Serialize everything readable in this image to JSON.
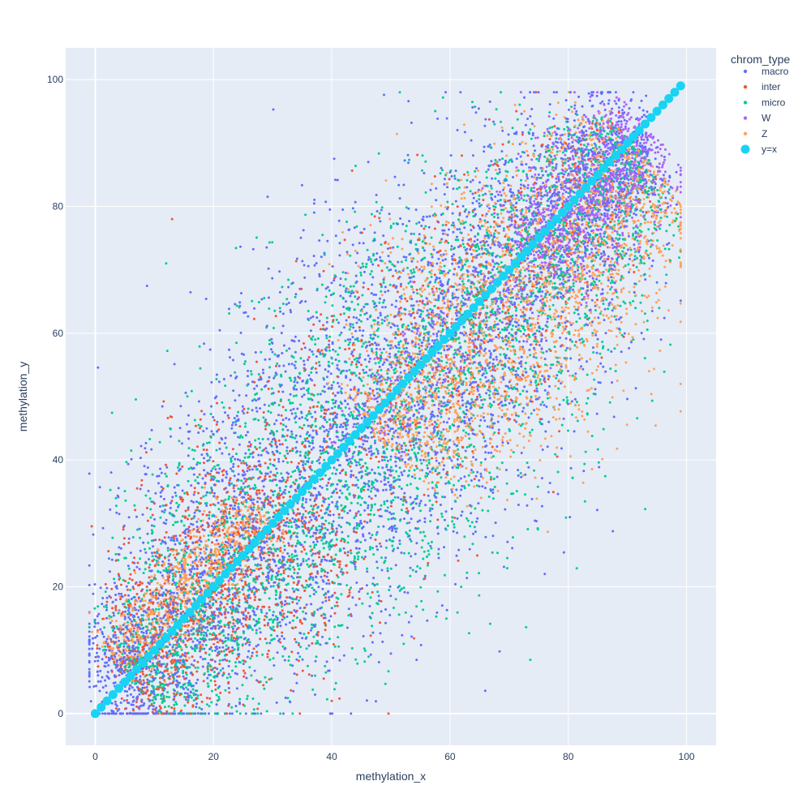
{
  "chart_data": {
    "type": "scatter",
    "xlabel": "methylation_x",
    "ylabel": "methylation_y",
    "xlim": [
      -5,
      105
    ],
    "ylim": [
      -5,
      105
    ],
    "x_ticks": [
      0,
      20,
      40,
      60,
      80,
      100
    ],
    "y_ticks": [
      0,
      20,
      40,
      60,
      80,
      100
    ],
    "grid": true,
    "background": "#e5ecf6",
    "legend": {
      "title": "chrom_type",
      "placement": "top-right outside"
    },
    "series": [
      {
        "name": "macro",
        "color": "#636efa",
        "marker": "small-dot",
        "approx_points": 9000,
        "distribution": "dense band around y=x from (0,0) to (92,92); spread about ±20 at mid-range, narrower near 0 and 90",
        "samples": [
          [
            5,
            8
          ],
          [
            10,
            12
          ],
          [
            20,
            18
          ],
          [
            30,
            35
          ],
          [
            40,
            45
          ],
          [
            50,
            55
          ],
          [
            60,
            65
          ],
          [
            65,
            80
          ],
          [
            70,
            60
          ],
          [
            75,
            85
          ],
          [
            80,
            70
          ],
          [
            85,
            88
          ],
          [
            45,
            30
          ],
          [
            55,
            40
          ],
          [
            35,
            50
          ],
          [
            95,
            68
          ]
        ]
      },
      {
        "name": "inter",
        "color": "#ef553b",
        "marker": "small-dot",
        "approx_points": 3500,
        "distribution": "along y=x, denser in lower-left (0-30) with some outliers above the diagonal",
        "samples": [
          [
            8,
            10
          ],
          [
            12,
            18
          ],
          [
            15,
            25
          ],
          [
            20,
            30
          ],
          [
            25,
            20
          ],
          [
            35,
            45
          ],
          [
            45,
            55
          ],
          [
            55,
            60
          ],
          [
            62,
            88
          ],
          [
            13,
            78
          ],
          [
            40,
            2
          ],
          [
            75,
            88
          ]
        ]
      },
      {
        "name": "micro",
        "color": "#00cc96",
        "marker": "small-dot",
        "approx_points": 7000,
        "distribution": "along y=x, concentrated 30-70, broader spread",
        "samples": [
          [
            10,
            15
          ],
          [
            20,
            25
          ],
          [
            30,
            28
          ],
          [
            40,
            42
          ],
          [
            45,
            35
          ],
          [
            50,
            48
          ],
          [
            55,
            50
          ],
          [
            60,
            45
          ],
          [
            65,
            55
          ],
          [
            70,
            75
          ],
          [
            91,
            59
          ],
          [
            12,
            71
          ]
        ]
      },
      {
        "name": "W",
        "color": "#ab63fa",
        "marker": "small-dot",
        "approx_points": 2500,
        "distribution": "mostly upper range near 75-95 along y=x",
        "samples": [
          [
            80,
            80
          ],
          [
            85,
            85
          ],
          [
            88,
            90
          ],
          [
            90,
            88
          ],
          [
            92,
            93
          ],
          [
            86,
            78
          ],
          [
            78,
            72
          ],
          [
            70,
            65
          ],
          [
            60,
            58
          ],
          [
            50,
            52
          ]
        ]
      },
      {
        "name": "Z",
        "color": "#ffa15a",
        "marker": "small-dot",
        "approx_points": 6000,
        "distribution": "dense core 50-90 mostly below y=x, plus a lower-left band 5-30 above y=x",
        "samples": [
          [
            55,
            50
          ],
          [
            60,
            55
          ],
          [
            65,
            60
          ],
          [
            70,
            62
          ],
          [
            72,
            70
          ],
          [
            75,
            78
          ],
          [
            80,
            80
          ],
          [
            85,
            88
          ],
          [
            68,
            75
          ],
          [
            10,
            15
          ],
          [
            15,
            22
          ],
          [
            20,
            28
          ],
          [
            25,
            30
          ],
          [
            71,
            96
          ],
          [
            87,
            95
          ]
        ]
      },
      {
        "name": "y=x",
        "color": "#19d3f3",
        "marker": "large-circle",
        "x_start": 0,
        "x_end": 99,
        "x_step": 1,
        "relation": "y = x"
      }
    ]
  }
}
